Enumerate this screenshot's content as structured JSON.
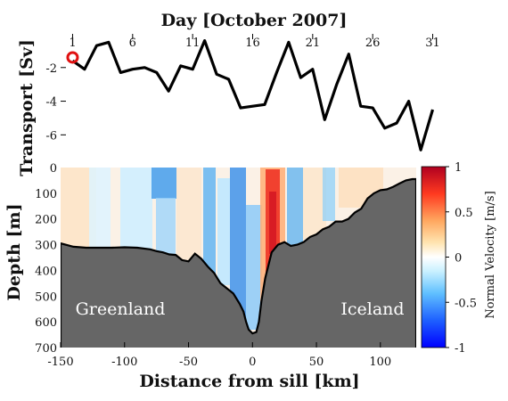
{
  "chart_data": [
    {
      "type": "line",
      "xlabel": "Day [October 2007]",
      "ylabel": "Transport [Sv]",
      "xlim": [
        0,
        32
      ],
      "ylim": [
        -7.2,
        0
      ],
      "xticks": [
        1,
        6,
        11,
        16,
        21,
        26,
        31
      ],
      "yticks": [
        -2,
        -4,
        -6
      ],
      "x": [
        1,
        2,
        3,
        4,
        5,
        6,
        7,
        8,
        9,
        10,
        11,
        12,
        13,
        14,
        15,
        16,
        17,
        18,
        19,
        20,
        21,
        22,
        23,
        24,
        25,
        26,
        27,
        28,
        29,
        30,
        31
      ],
      "values": [
        -1.6,
        -2.1,
        -0.7,
        -0.5,
        -2.3,
        -2.1,
        -2.0,
        -2.3,
        -3.4,
        -1.9,
        -2.1,
        -0.4,
        -2.4,
        -2.7,
        -4.4,
        -4.3,
        -4.2,
        -2.3,
        -0.5,
        -2.6,
        -2.1,
        -5.1,
        -3.0,
        -1.2,
        -4.3,
        -4.4,
        -5.6,
        -5.3,
        -4.0,
        -6.9,
        -4.5
      ],
      "marker": {
        "x": 1,
        "y": -1.4,
        "color": "#e01010"
      },
      "line_color": "#000000"
    },
    {
      "type": "heatmap",
      "xlabel": "Distance from sill [km]",
      "ylabel": "Depth [m]",
      "xlim": [
        -150,
        128
      ],
      "ylim": [
        700,
        0
      ],
      "xticks": [
        -150,
        -100,
        -50,
        0,
        50,
        100
      ],
      "yticks": [
        0,
        100,
        200,
        300,
        400,
        500,
        600,
        700
      ],
      "bathymetry": {
        "distance": [
          -150,
          -140,
          -130,
          -120,
          -110,
          -100,
          -90,
          -80,
          -75,
          -70,
          -65,
          -60,
          -55,
          -50,
          -45,
          -40,
          -35,
          -30,
          -25,
          -20,
          -15,
          -10,
          -7,
          -5,
          -3,
          0,
          3,
          5,
          7,
          10,
          15,
          20,
          25,
          30,
          35,
          40,
          45,
          50,
          55,
          60,
          65,
          70,
          75,
          80,
          85,
          90,
          95,
          100,
          105,
          110,
          115,
          120,
          125,
          128
        ],
        "depth": [
          295,
          308,
          312,
          312,
          312,
          310,
          312,
          318,
          325,
          330,
          338,
          340,
          360,
          365,
          335,
          355,
          385,
          410,
          450,
          470,
          490,
          530,
          560,
          600,
          630,
          645,
          640,
          600,
          520,
          430,
          330,
          300,
          290,
          305,
          300,
          290,
          270,
          260,
          240,
          230,
          210,
          210,
          200,
          175,
          160,
          120,
          100,
          88,
          85,
          75,
          62,
          50,
          45,
          45
        ]
      },
      "colorbar": {
        "label": "Normal Velocity [m/s]",
        "range": [
          -1,
          1
        ],
        "ticks": [
          1,
          0.5,
          0,
          -0.5,
          -1
        ],
        "tick_labels": [
          "1",
          "0.5",
          "0",
          "-0.5",
          "-1"
        ],
        "colors": [
          "#0000ff",
          "#00a8ff",
          "#7fd8ff",
          "#ffffff",
          "#ffd080",
          "#ff8030",
          "#ff2020",
          "#b00020"
        ]
      },
      "annotations": [
        {
          "text": "Greenland",
          "x": -105,
          "y": 555
        },
        {
          "text": "Iceland",
          "x": 95,
          "y": 555
        }
      ]
    }
  ]
}
